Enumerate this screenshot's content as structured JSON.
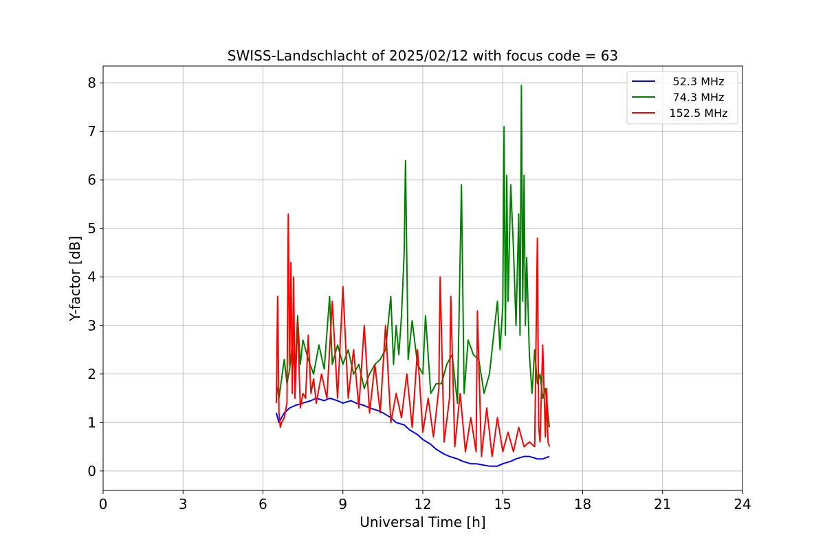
{
  "chart_data": {
    "type": "line",
    "title": "SWISS-Landschlacht of 2025/02/12 with focus code = 63",
    "xlabel": "Universal Time [h]",
    "ylabel": "Y-factor [dB]",
    "xlim": [
      0,
      24
    ],
    "ylim": [
      -0.4,
      8.35
    ],
    "x_ticks": [
      0,
      3,
      6,
      9,
      12,
      15,
      18,
      21,
      24
    ],
    "y_ticks": [
      0,
      1,
      2,
      3,
      4,
      5,
      6,
      7,
      8
    ],
    "grid": true,
    "legend_position": "top-right",
    "series": [
      {
        "name": "52.3 MHz",
        "color": "#0000ff",
        "x": [
          6.5,
          6.6,
          6.7,
          6.8,
          7.0,
          7.2,
          7.5,
          7.8,
          8.0,
          8.3,
          8.5,
          8.8,
          9.0,
          9.3,
          9.5,
          9.8,
          10.0,
          10.3,
          10.5,
          10.8,
          11.0,
          11.3,
          11.5,
          11.8,
          12.0,
          12.3,
          12.5,
          12.8,
          13.0,
          13.3,
          13.5,
          13.8,
          14.0,
          14.3,
          14.5,
          14.8,
          15.0,
          15.3,
          15.5,
          15.8,
          16.0,
          16.3,
          16.5,
          16.75
        ],
        "y": [
          1.2,
          1.0,
          1.1,
          1.2,
          1.3,
          1.35,
          1.4,
          1.45,
          1.5,
          1.45,
          1.5,
          1.45,
          1.4,
          1.45,
          1.4,
          1.35,
          1.3,
          1.25,
          1.2,
          1.1,
          1.0,
          0.95,
          0.85,
          0.75,
          0.65,
          0.55,
          0.45,
          0.35,
          0.3,
          0.25,
          0.2,
          0.15,
          0.15,
          0.12,
          0.1,
          0.1,
          0.15,
          0.2,
          0.25,
          0.3,
          0.3,
          0.25,
          0.25,
          0.3
        ]
      },
      {
        "name": "74.3 MHz",
        "color": "#008000",
        "x": [
          6.5,
          6.6,
          6.7,
          6.8,
          6.9,
          7.0,
          7.1,
          7.2,
          7.3,
          7.4,
          7.5,
          7.7,
          7.9,
          8.1,
          8.3,
          8.5,
          8.6,
          8.8,
          9.0,
          9.2,
          9.4,
          9.6,
          9.8,
          10.0,
          10.2,
          10.4,
          10.6,
          10.8,
          10.9,
          11.0,
          11.1,
          11.2,
          11.3,
          11.35,
          11.45,
          11.6,
          11.8,
          12.0,
          12.1,
          12.3,
          12.5,
          12.7,
          12.9,
          13.1,
          13.3,
          13.45,
          13.55,
          13.7,
          13.9,
          14.1,
          14.3,
          14.5,
          14.7,
          14.8,
          14.9,
          15.0,
          15.05,
          15.1,
          15.15,
          15.2,
          15.3,
          15.4,
          15.5,
          15.6,
          15.65,
          15.7,
          15.75,
          15.8,
          15.85,
          15.9,
          16.0,
          16.1,
          16.2,
          16.3,
          16.4,
          16.5,
          16.6,
          16.75
        ],
        "y": [
          1.8,
          1.5,
          1.9,
          2.3,
          1.8,
          2.1,
          2.6,
          2.0,
          3.2,
          2.2,
          2.7,
          2.3,
          2.0,
          2.6,
          2.1,
          3.6,
          2.2,
          2.6,
          2.2,
          2.5,
          2.0,
          2.2,
          1.7,
          2.0,
          2.2,
          2.3,
          2.5,
          3.6,
          2.2,
          3.0,
          2.4,
          3.2,
          4.5,
          6.4,
          2.3,
          3.1,
          2.2,
          2.0,
          3.2,
          1.6,
          1.8,
          1.8,
          2.2,
          2.4,
          1.4,
          5.9,
          1.6,
          2.7,
          2.4,
          2.3,
          1.6,
          2.0,
          3.0,
          3.5,
          2.5,
          3.4,
          7.1,
          2.8,
          6.1,
          3.5,
          5.9,
          4.6,
          3.0,
          5.3,
          2.8,
          7.95,
          3.5,
          6.1,
          3.0,
          4.4,
          2.4,
          1.6,
          2.5,
          1.8,
          2.0,
          1.5,
          1.7,
          0.9
        ]
      },
      {
        "name": "152.5 MHz",
        "color": "#ff0000",
        "x": [
          6.5,
          6.55,
          6.6,
          6.65,
          6.7,
          6.8,
          6.9,
          6.95,
          7.0,
          7.05,
          7.1,
          7.15,
          7.2,
          7.3,
          7.4,
          7.5,
          7.6,
          7.7,
          7.8,
          7.9,
          8.0,
          8.2,
          8.4,
          8.6,
          8.8,
          9.0,
          9.2,
          9.4,
          9.6,
          9.8,
          10.0,
          10.2,
          10.4,
          10.6,
          10.8,
          11.0,
          11.2,
          11.4,
          11.6,
          11.8,
          12.0,
          12.2,
          12.4,
          12.6,
          12.65,
          12.8,
          13.0,
          13.05,
          13.2,
          13.4,
          13.6,
          13.8,
          14.0,
          14.05,
          14.2,
          14.4,
          14.6,
          14.8,
          15.0,
          15.2,
          15.4,
          15.6,
          15.8,
          16.0,
          16.2,
          16.3,
          16.35,
          16.4,
          16.5,
          16.6,
          16.65,
          16.7,
          16.75
        ],
        "y": [
          1.4,
          3.6,
          1.2,
          0.9,
          1.0,
          1.1,
          1.4,
          5.3,
          2.2,
          4.3,
          1.6,
          4.0,
          1.5,
          3.1,
          1.3,
          1.6,
          1.5,
          2.8,
          1.6,
          1.9,
          1.4,
          2.0,
          1.5,
          3.5,
          1.5,
          3.8,
          1.5,
          2.5,
          1.3,
          3.0,
          1.2,
          2.2,
          1.2,
          3.0,
          1.0,
          1.6,
          1.1,
          2.0,
          0.9,
          2.5,
          0.8,
          1.5,
          0.7,
          1.7,
          4.0,
          0.6,
          1.5,
          3.6,
          0.5,
          1.6,
          0.4,
          1.1,
          0.4,
          3.3,
          0.3,
          1.3,
          0.3,
          1.1,
          0.4,
          0.8,
          0.4,
          0.9,
          0.5,
          0.6,
          0.5,
          4.8,
          0.9,
          0.6,
          2.6,
          0.7,
          1.7,
          0.6,
          0.5
        ]
      }
    ]
  }
}
